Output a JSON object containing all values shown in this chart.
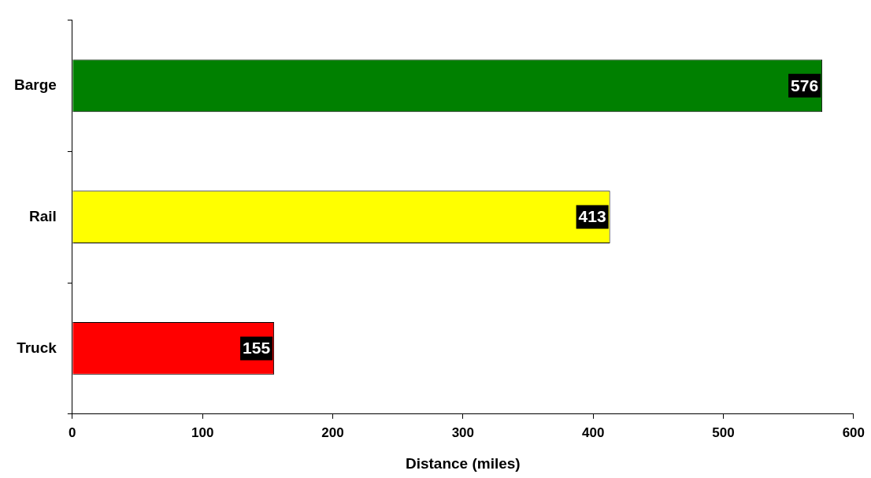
{
  "chart_data": {
    "type": "bar",
    "orientation": "horizontal",
    "xlabel": "Distance (miles)",
    "categories": [
      "Barge",
      "Rail",
      "Truck"
    ],
    "values": [
      576,
      413,
      155
    ],
    "colors": [
      "#008000",
      "#ffff00",
      "#ff0000"
    ],
    "xlim": [
      0,
      600
    ],
    "xticks": [
      0,
      100,
      200,
      300,
      400,
      500,
      600
    ],
    "data_labels": true,
    "grid": false,
    "legend": false
  }
}
